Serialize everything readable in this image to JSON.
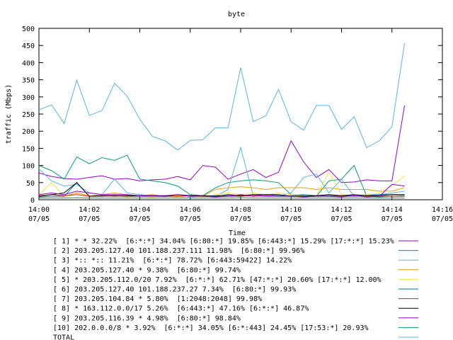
{
  "chart_data": {
    "type": "line",
    "title": "byte",
    "xlabel": "Time",
    "ylabel": "traffic (Mbps)",
    "xlim": [
      0,
      16
    ],
    "xticks": [
      {
        "value": 0,
        "label": "14:00\n07/05"
      },
      {
        "value": 2,
        "label": "14:02\n07/05"
      },
      {
        "value": 4,
        "label": "14:04\n07/05"
      },
      {
        "value": 6,
        "label": "14:06\n07/05"
      },
      {
        "value": 8,
        "label": "14:08\n07/05"
      },
      {
        "value": 10,
        "label": "14:10\n07/05"
      },
      {
        "value": 12,
        "label": "14:12\n07/05"
      },
      {
        "value": 14,
        "label": "14:14\n07/05"
      },
      {
        "value": 16,
        "label": "14:16\n07/05"
      }
    ],
    "ylim": [
      0,
      500
    ],
    "yticks": [
      0,
      50,
      100,
      150,
      200,
      250,
      300,
      350,
      400,
      450,
      500
    ],
    "grid": false,
    "x": [
      0,
      0.5,
      1,
      1.5,
      2,
      2.5,
      3,
      3.5,
      4,
      4.5,
      5,
      5.5,
      6,
      6.5,
      7,
      7.5,
      8,
      8.5,
      9,
      9.5,
      10,
      10.5,
      11,
      11.5,
      12,
      12.5,
      13,
      13.5,
      14,
      14.5
    ],
    "series": [
      {
        "name": "[ 1] * * 32.22%  [6:*:*] 34.04% [6:80:*] 19.85% [6:443:*] 15.29% [17:*:*] 15.23%",
        "color": "#9400d3",
        "values": [
          78,
          68,
          62,
          60,
          65,
          70,
          60,
          62,
          55,
          58,
          60,
          68,
          58,
          100,
          95,
          60,
          75,
          88,
          65,
          80,
          172,
          110,
          65,
          88,
          50,
          52,
          58,
          55,
          55,
          275
        ]
      },
      {
        "name": "[ 2] 203.205.127.40 101.188.237.111 11.98%  [6:80:*] 99.96%",
        "color": "#009e73",
        "values": [
          100,
          85,
          60,
          125,
          105,
          123,
          115,
          130,
          60,
          55,
          50,
          40,
          15,
          12,
          35,
          50,
          55,
          58,
          55,
          50,
          15,
          12,
          10,
          55,
          60,
          100,
          10,
          8,
          10,
          12
        ]
      },
      {
        "name": "[ 3] *:: *:: 11.21%  [6:*:*] 78.72% [6:443:59422] 14.22%",
        "color": "#56b4e9",
        "values": [
          90,
          55,
          40,
          45,
          20,
          15,
          60,
          20,
          15,
          12,
          10,
          12,
          8,
          10,
          10,
          30,
          152,
          12,
          10,
          10,
          20,
          65,
          75,
          20,
          60,
          10,
          15,
          15,
          20,
          25
        ]
      },
      {
        "name": "[ 4] 203.205.127.40 * 9.38%  [6:80:*] 99.74%",
        "color": "#e69f00",
        "values": [
          10,
          15,
          10,
          20,
          12,
          15,
          20,
          15,
          12,
          15,
          10,
          12,
          12,
          10,
          30,
          35,
          38,
          35,
          30,
          35,
          35,
          35,
          30,
          35,
          30,
          30,
          30,
          25,
          25,
          35
        ]
      },
      {
        "name": "[ 5] * 203.205.112.0/20 7.92%  [6:*:*] 62.71% [47:*:*] 20.60% [17:*:*] 12.00%",
        "color": "#f0e442",
        "values": [
          15,
          50,
          10,
          15,
          12,
          10,
          12,
          8,
          10,
          8,
          10,
          8,
          10,
          8,
          15,
          20,
          15,
          20,
          15,
          20,
          15,
          10,
          10,
          80,
          15,
          10,
          15,
          20,
          40,
          70
        ]
      },
      {
        "name": "[ 6] 203.205.127.40 101.188.237.27 7.34%  [6:80:*] 99.93%",
        "color": "#0072b2",
        "values": [
          8,
          10,
          10,
          50,
          10,
          10,
          12,
          10,
          10,
          10,
          10,
          10,
          12,
          10,
          12,
          12,
          12,
          12,
          15,
          12,
          12,
          15,
          12,
          12,
          12,
          12,
          12,
          15,
          15,
          15
        ]
      },
      {
        "name": "[ 7] 203.205.104.84 * 5.80%  [1:2048:2048] 99.98%",
        "color": "#e51e10",
        "values": [
          12,
          15,
          12,
          15,
          10,
          12,
          10,
          12,
          12,
          12,
          12,
          10,
          12,
          12,
          10,
          10,
          10,
          12,
          10,
          10,
          10,
          10,
          10,
          10,
          10,
          10,
          10,
          10,
          10,
          10
        ]
      },
      {
        "name": "[ 8] * 163.112.0.0/17 5.26%  [6:443:*] 47.16% [6:*:*] 46.87%",
        "color": "#000000",
        "values": [
          10,
          15,
          20,
          50,
          10,
          12,
          12,
          12,
          12,
          12,
          10,
          15,
          12,
          12,
          10,
          15,
          12,
          15,
          15,
          15,
          10,
          10,
          12,
          15,
          12,
          15,
          12,
          12,
          15,
          15
        ]
      },
      {
        "name": "[ 9] 203.205.116.39 * 4.98%  [6:80:*] 98.84%",
        "color": "#9400d3",
        "values": [
          15,
          20,
          15,
          25,
          20,
          15,
          15,
          15,
          12,
          12,
          12,
          15,
          10,
          10,
          8,
          10,
          15,
          10,
          12,
          10,
          10,
          8,
          10,
          10,
          8,
          12,
          8,
          10,
          45,
          40
        ]
      },
      {
        "name": "[10] 202.0.0.0/8 * 3.92%  [6:*:*] 34.05% [6:*:443] 24.45% [17:53:*] 20.93%",
        "color": "#009e73",
        "values": [
          5,
          5,
          5,
          6,
          5,
          5,
          5,
          5,
          5,
          5,
          5,
          5,
          5,
          5,
          5,
          5,
          6,
          5,
          5,
          5,
          5,
          5,
          5,
          5,
          5,
          5,
          5,
          5,
          5,
          5
        ]
      },
      {
        "name": "TOTAL",
        "color": "#56b4e9",
        "values": [
          262,
          277,
          222,
          349,
          246,
          260,
          340,
          302,
          235,
          185,
          172,
          145,
          173,
          175,
          210,
          210,
          385,
          228,
          245,
          322,
          228,
          203,
          275,
          275,
          205,
          242,
          152,
          172,
          213,
          457
        ]
      }
    ]
  }
}
